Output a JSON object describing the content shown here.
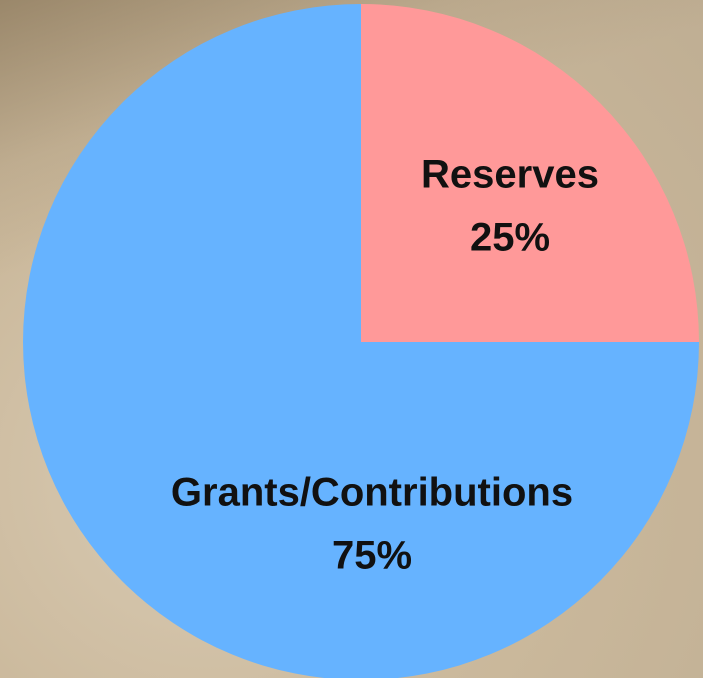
{
  "chart_data": {
    "type": "pie",
    "categories": [
      "Reserves",
      "Grants/Contributions"
    ],
    "values": [
      25,
      75
    ],
    "value_labels": [
      "25%",
      "75%"
    ],
    "colors": [
      "#ff9999",
      "#66b3ff"
    ]
  }
}
